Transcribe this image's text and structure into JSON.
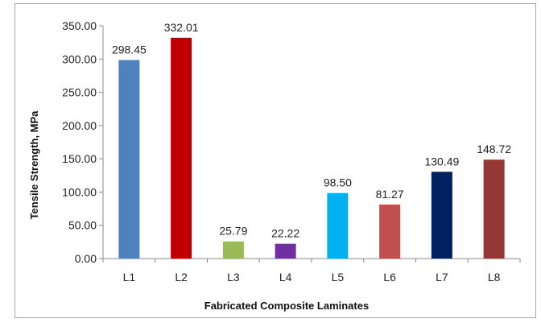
{
  "chart_data": {
    "type": "bar",
    "title": "",
    "xlabel": "Fabricated Composite Laminates",
    "ylabel": "Tensile Strength, MPa",
    "ylim": [
      0,
      350
    ],
    "yticks": [
      "0.00",
      "50.00",
      "100.00",
      "150.00",
      "200.00",
      "250.00",
      "300.00",
      "350.00"
    ],
    "categories": [
      "L1",
      "L2",
      "L3",
      "L4",
      "L5",
      "L6",
      "L7",
      "L8"
    ],
    "values": [
      298.45,
      332.01,
      25.79,
      22.22,
      98.5,
      81.27,
      130.49,
      148.72
    ],
    "value_labels": [
      "298.45",
      "332.01",
      "25.79",
      "22.22",
      "98.50",
      "81.27",
      "130.49",
      "148.72"
    ],
    "colors": [
      "#4f81bd",
      "#c00000",
      "#9bbb59",
      "#7030a0",
      "#00b0f0",
      "#c0504d",
      "#002060",
      "#953735"
    ],
    "grid": false,
    "legend": "none"
  }
}
